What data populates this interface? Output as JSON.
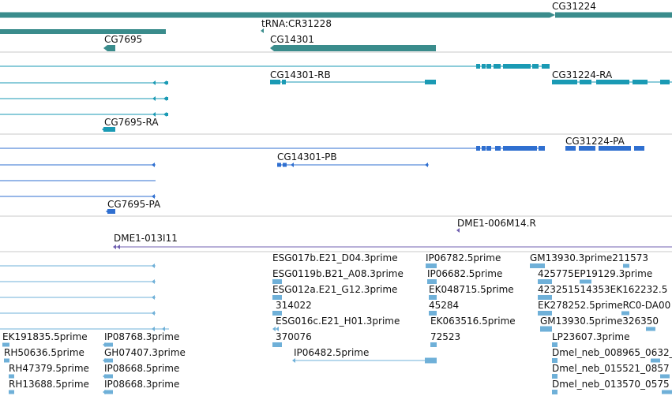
{
  "colors": {
    "gene": "#3a8c8c",
    "rna": "#1a9ab4",
    "protein": "#2f6fd0",
    "bac": "#7060b0",
    "est": "#6fb0d8",
    "divider": "#c8c8c8"
  },
  "tracks": {
    "gene": {
      "labels": [
        "CG31224",
        "tRNA:CR31228",
        "CG7695",
        "CG14301"
      ]
    },
    "transcript": {
      "labels": [
        "CG14301-RB",
        "CG31224-RA",
        "CG7695-RA"
      ]
    },
    "protein": {
      "labels": [
        "CG31224-PA",
        "CG14301-PB",
        "CG7695-PA"
      ]
    },
    "bac": {
      "labels": [
        "DME1-006M14.R",
        "DME1-013I11"
      ]
    },
    "est": {
      "labels": [
        "ESG017b.E21_D04.3prime",
        "ESG0119b.B21_A08.3prime",
        "ESG012a.E21_G12.3prime",
        "314022",
        "ESG016c.E21_H01.3prime",
        "370076",
        "IP06482.5prime",
        "IP06782.5prime",
        "IP06682.5prime",
        "EK048715.5prime",
        "45284",
        "EK063516.5prime",
        "72523",
        "GM13930.3prime211573",
        "425775EP19129.3prime",
        "423251514353EK162232.5",
        "EK278252.5primeRC0-DA00",
        "GM13930.5prime326350",
        "LP23607.3prime",
        "Dmel_neb_008965_0632_",
        "Dmel_neb_015521_0857",
        "Dmel_neb_013570_0575",
        "EK191835.5prime",
        "IP08768.3prime",
        "RH50636.5prime",
        "GH07407.3prime",
        "RH47379.5prime",
        "IP08668.5prime",
        "RH13688.5prime",
        "IP08668.3prime"
      ]
    }
  }
}
